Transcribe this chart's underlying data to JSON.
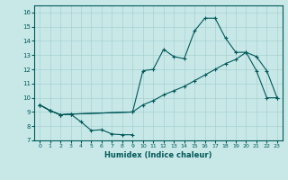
{
  "xlabel": "Humidex (Indice chaleur)",
  "bg_color": "#c8e8e8",
  "grid_color": "#a8d0d0",
  "line_color": "#005858",
  "xlim": [
    -0.5,
    23.5
  ],
  "ylim": [
    7,
    16.5
  ],
  "yticks": [
    7,
    8,
    9,
    10,
    11,
    12,
    13,
    14,
    15,
    16
  ],
  "xticks": [
    0,
    1,
    2,
    3,
    4,
    5,
    6,
    7,
    8,
    9,
    10,
    11,
    12,
    13,
    14,
    15,
    16,
    17,
    18,
    19,
    20,
    21,
    22,
    23
  ],
  "line1_x": [
    0,
    1,
    2,
    3,
    4,
    5,
    6,
    7,
    8,
    9
  ],
  "line1_y": [
    9.5,
    9.1,
    8.8,
    8.85,
    8.3,
    7.7,
    7.75,
    7.45,
    7.4,
    7.4
  ],
  "line2_x": [
    0,
    1,
    2,
    3,
    9,
    10,
    11,
    12,
    13,
    14,
    15,
    16,
    17,
    18,
    19,
    20,
    21,
    22,
    23
  ],
  "line2_y": [
    9.5,
    9.1,
    8.8,
    8.85,
    9.0,
    11.9,
    12.0,
    13.4,
    12.9,
    12.75,
    14.7,
    15.6,
    15.6,
    14.2,
    13.2,
    13.2,
    11.9,
    10.0,
    10.0
  ],
  "line3_x": [
    0,
    1,
    2,
    3,
    9,
    10,
    11,
    12,
    13,
    14,
    15,
    16,
    17,
    18,
    19,
    20,
    21,
    22,
    23
  ],
  "line3_y": [
    9.5,
    9.1,
    8.8,
    8.85,
    9.0,
    9.5,
    9.8,
    10.2,
    10.5,
    10.8,
    11.2,
    11.6,
    12.0,
    12.4,
    12.7,
    13.2,
    12.9,
    11.9,
    10.0
  ]
}
